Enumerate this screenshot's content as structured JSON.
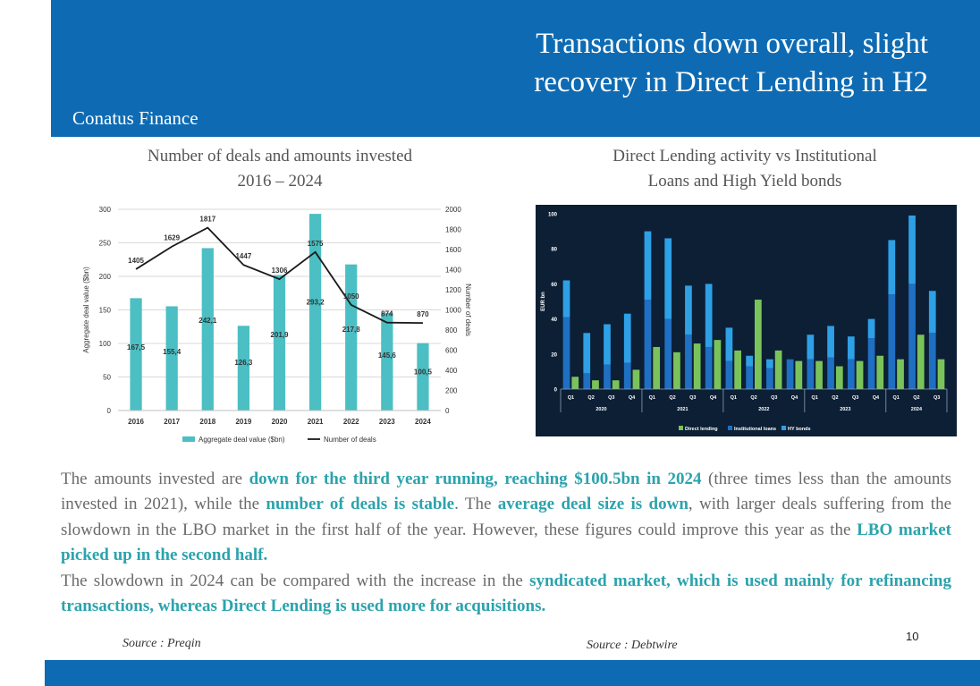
{
  "header": {
    "title_line1": "Transactions down overall, slight",
    "title_line2": "recovery in Direct Lending in H2",
    "brand": "Conatus Finance"
  },
  "chart1_title": {
    "line1": "Number of deals and amounts invested",
    "line2": "2016 – 2024"
  },
  "chart2_title": {
    "line1": "Direct Lending activity vs Institutional",
    "line2": "Loans and High Yield bonds"
  },
  "chart_data": [
    {
      "type": "bar",
      "categories": [
        "2016",
        "2017",
        "2018",
        "2019",
        "2020",
        "2021",
        "2022",
        "2023",
        "2024"
      ],
      "series": [
        {
          "name": "Aggregate deal value ($bn)",
          "type": "bar",
          "axis": "left",
          "values": [
            167.5,
            155.4,
            242.1,
            126.3,
            201.9,
            293.2,
            217.8,
            145.6,
            100.5
          ],
          "labels": [
            "167,5",
            "155,4",
            "242,1",
            "126,3",
            "201,9",
            "293,2",
            "217,8",
            "145,6",
            "100,5"
          ]
        },
        {
          "name": "Number of deals",
          "type": "line",
          "axis": "right",
          "values": [
            1405,
            1629,
            1817,
            1447,
            1306,
            1575,
            1050,
            874,
            870
          ],
          "labels": [
            "1405",
            "1629",
            "1817",
            "1447",
            "1306",
            "1575",
            "1050",
            "874",
            "870"
          ]
        }
      ],
      "ylabel": "Aggregate deal value ($bn)",
      "y2label": "Number of deals",
      "ylim": [
        0,
        300
      ],
      "y2lim": [
        0,
        2000
      ],
      "yticks": [
        "0",
        "50",
        "100",
        "150",
        "200",
        "250",
        "300"
      ],
      "y2ticks": [
        "0",
        "200",
        "400",
        "600",
        "800",
        "1000",
        "1200",
        "1400",
        "1600",
        "1800",
        "2000"
      ],
      "grid": true,
      "legend": "bottom",
      "colors": {
        "bar": "#4bbfc3",
        "line": "#1a1a1a"
      }
    },
    {
      "type": "bar",
      "background": "#0c1f35",
      "ylabel": "EUR bn",
      "ylim": [
        0,
        100
      ],
      "yticks": [
        "0",
        "20",
        "40",
        "60",
        "80",
        "100"
      ],
      "categories": [
        "Q1",
        "Q2",
        "Q3",
        "Q4",
        "Q1",
        "Q2",
        "Q3",
        "Q4",
        "Q1",
        "Q2",
        "Q3",
        "Q4",
        "Q1",
        "Q2",
        "Q3",
        "Q4",
        "Q1",
        "Q2",
        "Q3"
      ],
      "years": [
        {
          "label": "2020",
          "count": 4
        },
        {
          "label": "2021",
          "count": 4
        },
        {
          "label": "2022",
          "count": 4
        },
        {
          "label": "2023",
          "count": 4
        },
        {
          "label": "2024",
          "count": 3
        }
      ],
      "series": [
        {
          "name": "Direct lending",
          "color": "#7ac35a",
          "values": [
            7,
            5,
            5,
            11,
            24,
            21,
            26,
            28,
            22,
            51,
            22,
            16,
            16,
            13,
            16,
            19,
            17,
            31,
            17
          ]
        },
        {
          "name": "Institutional loans",
          "color": "#1f6fc2",
          "values": [
            41,
            9,
            14,
            15,
            51,
            40,
            31,
            24,
            16,
            13,
            12,
            17,
            17,
            18,
            17,
            29,
            54,
            60,
            32
          ]
        },
        {
          "name": "HY bonds",
          "color": "#2ea0e6",
          "values": [
            21,
            23,
            23,
            28,
            39,
            46,
            28,
            36,
            19,
            6,
            5,
            0,
            14,
            18,
            13,
            11,
            31,
            39,
            24
          ]
        }
      ],
      "legend": "bottom"
    }
  ],
  "body": {
    "p1": [
      {
        "t": "The amounts invested are ",
        "hl": false
      },
      {
        "t": "down for the third year running, reaching $100.5bn in 2024",
        "hl": true
      },
      {
        "t": " (three times less than the amounts invested in 2021), while the ",
        "hl": false
      },
      {
        "t": "number of deals is stable",
        "hl": true
      },
      {
        "t": ". The ",
        "hl": false
      },
      {
        "t": "average deal size is down",
        "hl": true
      },
      {
        "t": ", with larger deals suffering from the slowdown in the LBO market in the first half of the year. However, these figures could improve this year as the ",
        "hl": false
      },
      {
        "t": "LBO market picked up in the second half.",
        "hl": true
      }
    ],
    "p2": [
      {
        "t": "The slowdown in 2024 can be compared with the increase in the ",
        "hl": false
      },
      {
        "t": "syndicated market, which is used mainly for refinancing transactions, whereas Direct Lending is used more for acquisitions.",
        "hl": true
      }
    ]
  },
  "sources": {
    "left": "Source : Preqin",
    "right": "Source : Debtwire"
  },
  "page_number": "10"
}
